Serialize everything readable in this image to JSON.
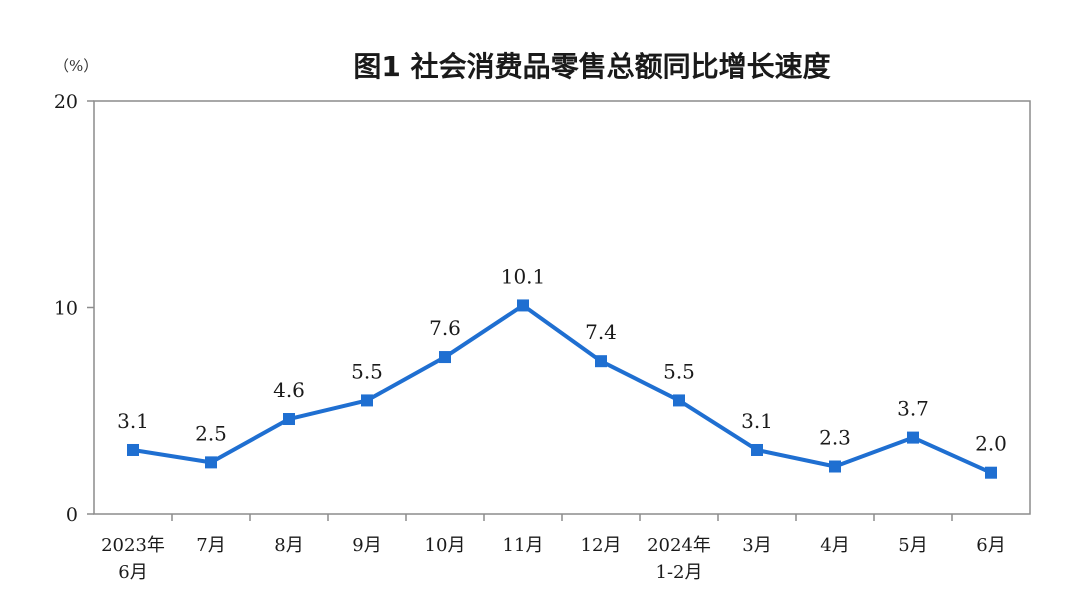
{
  "chart_data": {
    "type": "line",
    "title": "图1 社会消费品零售总额同比增长速度",
    "unit_label": "（%）",
    "categories": [
      [
        "2023年",
        "6月"
      ],
      [
        "7月"
      ],
      [
        "8月"
      ],
      [
        "9月"
      ],
      [
        "10月"
      ],
      [
        "11月"
      ],
      [
        "12月"
      ],
      [
        "2024年",
        "1-2月"
      ],
      [
        "3月"
      ],
      [
        "4月"
      ],
      [
        "5月"
      ],
      [
        "6月"
      ]
    ],
    "series": [
      {
        "values": [
          3.1,
          2.5,
          4.6,
          5.5,
          7.6,
          10.1,
          7.4,
          5.5,
          3.1,
          2.3,
          3.7,
          2.0
        ]
      }
    ],
    "data_labels": [
      "3.1",
      "2.5",
      "4.6",
      "5.5",
      "7.6",
      "10.1",
      "7.4",
      "5.5",
      "3.1",
      "2.3",
      "3.7",
      "2.0"
    ],
    "ylim": [
      0,
      20
    ],
    "yticks": [
      0,
      10,
      20
    ],
    "grid": false,
    "line_color": "#1f6fd1"
  }
}
